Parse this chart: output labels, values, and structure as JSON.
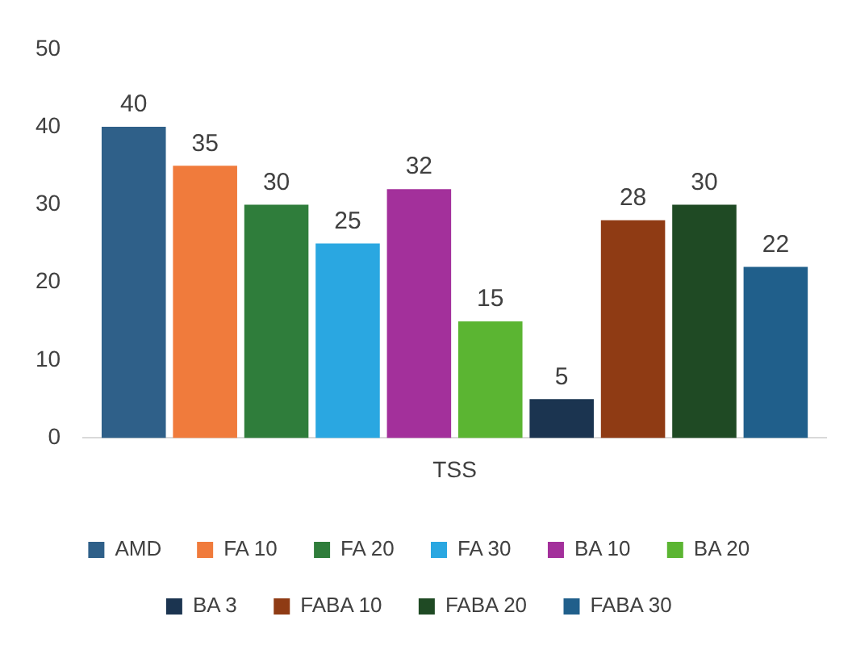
{
  "chart_data": {
    "type": "bar",
    "categories": [
      "TSS"
    ],
    "series": [
      {
        "name": "AMD",
        "color": "#2f6089",
        "values": [
          40
        ]
      },
      {
        "name": "FA 10",
        "color": "#f07b3c",
        "values": [
          35
        ]
      },
      {
        "name": "FA 20",
        "color": "#2f7d3b",
        "values": [
          30
        ]
      },
      {
        "name": "FA 30",
        "color": "#2aa7e1",
        "values": [
          25
        ]
      },
      {
        "name": "BA 10",
        "color": "#a3309b",
        "values": [
          32
        ]
      },
      {
        "name": "BA 20",
        "color": "#5bb532",
        "values": [
          15
        ]
      },
      {
        "name": "BA 3",
        "color": "#1b3450",
        "values": [
          5
        ]
      },
      {
        "name": "FABA 10",
        "color": "#8f3b14",
        "values": [
          28
        ]
      },
      {
        "name": "FABA 20",
        "color": "#1f4a24",
        "values": [
          30
        ]
      },
      {
        "name": "FABA 30",
        "color": "#205f8b",
        "values": [
          22
        ]
      }
    ],
    "ylim": [
      0,
      50
    ],
    "yticks": [
      0,
      10,
      20,
      30,
      40,
      50
    ],
    "grid": false,
    "legend": "bottom",
    "data_labels": true
  }
}
